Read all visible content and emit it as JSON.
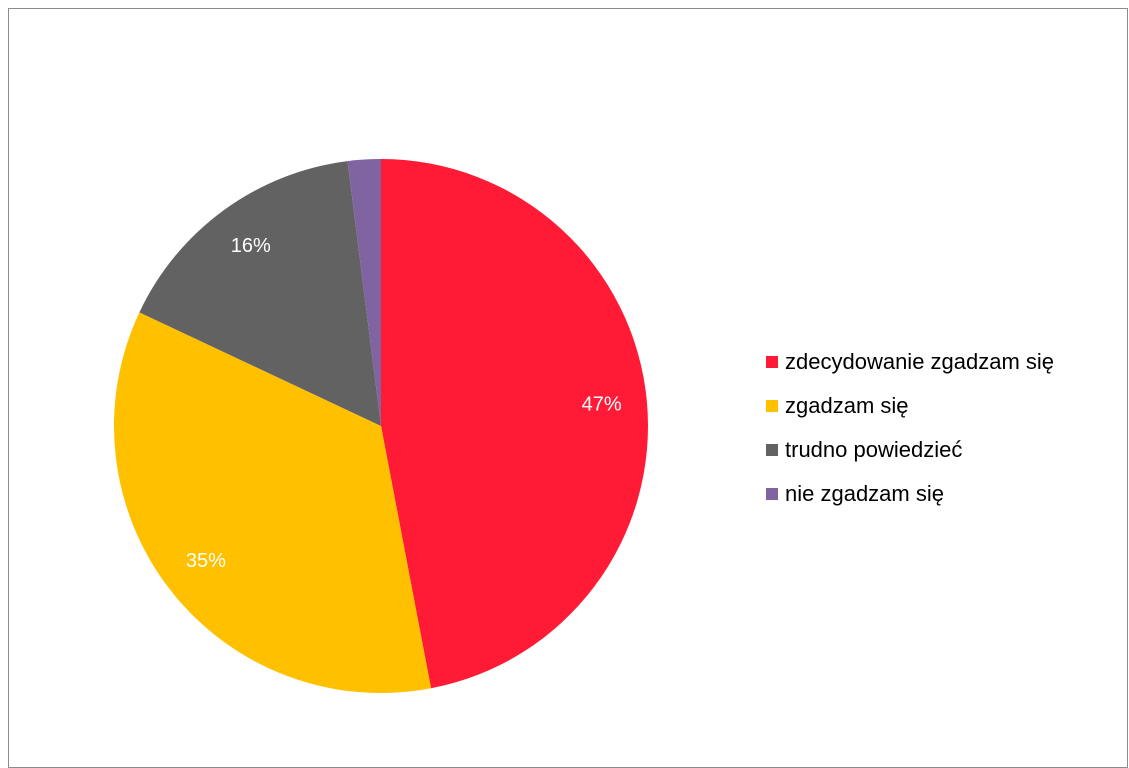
{
  "chart_data": {
    "type": "pie",
    "categories": [
      "zdecydowanie zgadzam się",
      "zgadzam się",
      "trudno powiedzieć",
      "nie zgadzam się"
    ],
    "values": [
      47,
      35,
      16,
      2
    ],
    "data_labels": [
      "47%",
      "35%",
      "16%",
      ""
    ],
    "colors": [
      "#ff1a35",
      "#ffc000",
      "#626262",
      "#8064a2"
    ],
    "legend_position": "right",
    "label_color": "#ffffff"
  }
}
